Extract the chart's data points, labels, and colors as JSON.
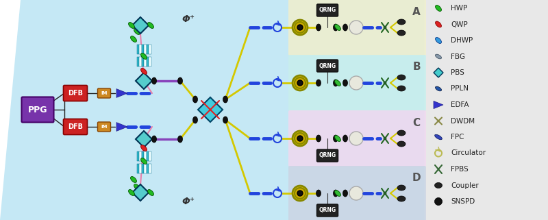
{
  "fig_width": 8.0,
  "fig_height": 3.21,
  "dpi": 100,
  "bg_main": "#c5e8f5",
  "bg_white": "#ffffff",
  "panel_A_color": "#f0eecc",
  "panel_B_color": "#c8eeec",
  "panel_C_color": "#f0d8ee",
  "panel_D_color": "#ccd4e4",
  "legend_items": [
    {
      "label": "HWP"
    },
    {
      "label": "QWP"
    },
    {
      "label": "DHWP"
    },
    {
      "label": "FBG"
    },
    {
      "label": "PBS"
    },
    {
      "label": "PPLN"
    },
    {
      "label": "EDFA"
    },
    {
      "label": "DWDM"
    },
    {
      "label": "FPC"
    },
    {
      "label": "Circulator"
    },
    {
      "label": "FPBS"
    },
    {
      "label": "Coupler"
    },
    {
      "label": "SNSPD"
    }
  ],
  "phi_plus_label": "Φ⁺",
  "yellow_line_color": "#d4c800",
  "pink_line_color": "#e880aa",
  "blue_fiber_color": "#2244dd",
  "purple_fiber_color": "#8844bb",
  "red_cross_color": "#dd2222",
  "cyan_bs_color": "#44ccdd",
  "ppln_cyan": "#33bbcc",
  "ppln_white": "#eeffff"
}
